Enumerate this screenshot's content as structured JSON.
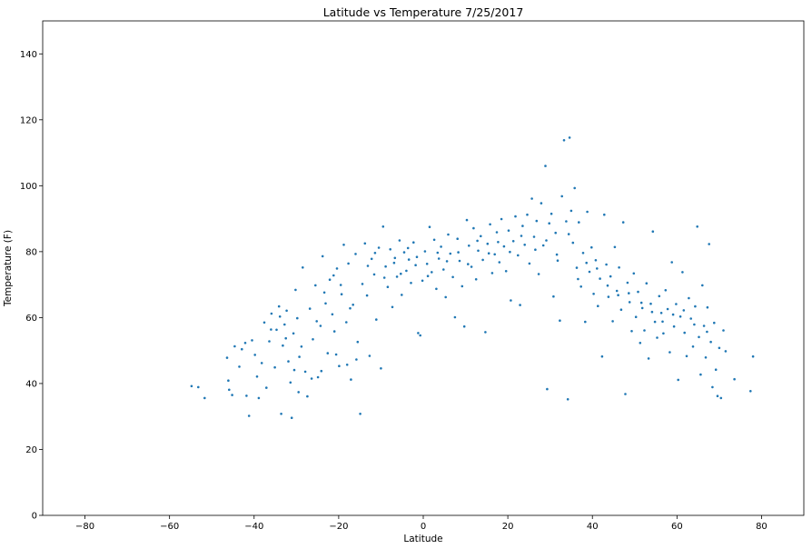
{
  "chart_data": {
    "type": "scatter",
    "title": "Latitude vs Temperature 7/25/2017",
    "xlabel": "Latitude",
    "ylabel": "Temperature (F)",
    "xlim": [
      -90,
      90
    ],
    "ylim": [
      0,
      150
    ],
    "x_ticks": [
      -80,
      -60,
      -40,
      -20,
      0,
      20,
      40,
      60,
      80
    ],
    "y_ticks": [
      0,
      20,
      40,
      60,
      80,
      100,
      120,
      140
    ],
    "grid": false,
    "point_color": "#1f77b4",
    "points": [
      [
        -54.8,
        39.2
      ],
      [
        -53.2,
        38.9
      ],
      [
        -51.7,
        35.6
      ],
      [
        -46.4,
        47.8
      ],
      [
        -46.1,
        40.9
      ],
      [
        -45.9,
        38.1
      ],
      [
        -45.2,
        36.5
      ],
      [
        -43.5,
        45.1
      ],
      [
        -42.9,
        50.4
      ],
      [
        -42.1,
        52.3
      ],
      [
        -41.8,
        36.3
      ],
      [
        -41.2,
        30.2
      ],
      [
        -40.5,
        53.1
      ],
      [
        -39.8,
        48.7
      ],
      [
        -38.9,
        35.6
      ],
      [
        -38.2,
        46.2
      ],
      [
        -37.6,
        58.5
      ],
      [
        -36.4,
        52.8
      ],
      [
        -35.9,
        61.2
      ],
      [
        -35.1,
        44.9
      ],
      [
        -34.7,
        56.3
      ],
      [
        -34.1,
        63.4
      ],
      [
        -33.6,
        30.8
      ],
      [
        -33.2,
        51.5
      ],
      [
        -32.8,
        57.9
      ],
      [
        -32.3,
        62.1
      ],
      [
        -31.9,
        46.7
      ],
      [
        -31.4,
        40.3
      ],
      [
        -31.1,
        29.6
      ],
      [
        -30.7,
        55.2
      ],
      [
        -30.2,
        68.4
      ],
      [
        -29.8,
        59.8
      ],
      [
        -29.3,
        48.1
      ],
      [
        -28.5,
        75.2
      ],
      [
        -27.9,
        43.6
      ],
      [
        -27.4,
        36.1
      ],
      [
        -26.8,
        62.7
      ],
      [
        -26.1,
        53.4
      ],
      [
        -25.5,
        69.8
      ],
      [
        -24.9,
        41.9
      ],
      [
        -24.3,
        57.5
      ],
      [
        -23.8,
        78.6
      ],
      [
        -23.1,
        64.3
      ],
      [
        -22.6,
        49.2
      ],
      [
        -22.1,
        71.5
      ],
      [
        -21.5,
        61.0
      ],
      [
        -21.0,
        55.8
      ],
      [
        -20.4,
        74.9
      ],
      [
        -19.9,
        45.3
      ],
      [
        -19.3,
        67.1
      ],
      [
        -18.8,
        82.1
      ],
      [
        -18.2,
        58.6
      ],
      [
        -17.7,
        76.4
      ],
      [
        -17.1,
        41.2
      ],
      [
        -16.6,
        63.9
      ],
      [
        -16.0,
        79.3
      ],
      [
        -15.5,
        52.6
      ],
      [
        -14.9,
        30.8
      ],
      [
        -14.4,
        70.2
      ],
      [
        -13.8,
        82.5
      ],
      [
        -13.3,
        66.7
      ],
      [
        -12.7,
        48.4
      ],
      [
        -12.2,
        77.8
      ],
      [
        -11.6,
        73.1
      ],
      [
        -11.1,
        59.4
      ],
      [
        -10.5,
        81.2
      ],
      [
        -10.0,
        44.6
      ],
      [
        -9.5,
        87.6
      ],
      [
        -8.9,
        75.5
      ],
      [
        -8.4,
        69.3
      ],
      [
        -7.8,
        80.7
      ],
      [
        -7.3,
        63.2
      ],
      [
        -6.7,
        78.1
      ],
      [
        -6.2,
        72.4
      ],
      [
        -5.6,
        83.4
      ],
      [
        -5.1,
        66.9
      ],
      [
        -4.5,
        79.8
      ],
      [
        -4.0,
        74.2
      ],
      [
        -3.4,
        77.6
      ],
      [
        -2.9,
        70.5
      ],
      [
        -2.3,
        82.8
      ],
      [
        -1.8,
        75.9
      ],
      [
        -1.2,
        55.3
      ],
      [
        -0.7,
        54.6
      ],
      [
        -0.2,
        71.2
      ],
      [
        0.4,
        80.1
      ],
      [
        0.9,
        76.3
      ],
      [
        1.5,
        87.5
      ],
      [
        2.0,
        73.8
      ],
      [
        2.6,
        83.6
      ],
      [
        3.1,
        68.7
      ],
      [
        3.7,
        77.9
      ],
      [
        4.2,
        81.5
      ],
      [
        4.8,
        74.6
      ],
      [
        5.3,
        66.2
      ],
      [
        5.9,
        85.2
      ],
      [
        6.4,
        79.4
      ],
      [
        7.0,
        72.3
      ],
      [
        7.5,
        60.1
      ],
      [
        8.1,
        83.9
      ],
      [
        8.6,
        77.2
      ],
      [
        9.2,
        69.5
      ],
      [
        9.7,
        57.3
      ],
      [
        10.3,
        89.6
      ],
      [
        10.8,
        81.8
      ],
      [
        11.4,
        75.4
      ],
      [
        11.9,
        87.1
      ],
      [
        12.5,
        71.6
      ],
      [
        13.0,
        80.3
      ],
      [
        13.6,
        84.7
      ],
      [
        14.1,
        77.5
      ],
      [
        14.7,
        55.6
      ],
      [
        15.2,
        82.4
      ],
      [
        15.8,
        88.3
      ],
      [
        16.3,
        73.5
      ],
      [
        16.9,
        79.2
      ],
      [
        17.4,
        85.9
      ],
      [
        18.0,
        76.8
      ],
      [
        18.5,
        89.9
      ],
      [
        19.1,
        81.6
      ],
      [
        19.6,
        74.1
      ],
      [
        20.2,
        86.4
      ],
      [
        20.7,
        65.2
      ],
      [
        21.3,
        83.2
      ],
      [
        21.8,
        90.7
      ],
      [
        22.4,
        78.9
      ],
      [
        22.9,
        63.8
      ],
      [
        23.5,
        87.8
      ],
      [
        24.0,
        82.1
      ],
      [
        24.6,
        91.2
      ],
      [
        25.1,
        76.4
      ],
      [
        25.7,
        96.1
      ],
      [
        26.2,
        84.5
      ],
      [
        26.8,
        89.3
      ],
      [
        27.3,
        73.2
      ],
      [
        27.9,
        94.7
      ],
      [
        28.4,
        81.9
      ],
      [
        28.9,
        106.0
      ],
      [
        29.3,
        38.3
      ],
      [
        29.8,
        88.6
      ],
      [
        30.3,
        91.5
      ],
      [
        30.8,
        66.4
      ],
      [
        31.3,
        85.7
      ],
      [
        31.8,
        77.3
      ],
      [
        32.3,
        59.1
      ],
      [
        32.8,
        96.8
      ],
      [
        33.3,
        113.8
      ],
      [
        33.8,
        89.2
      ],
      [
        34.2,
        35.2
      ],
      [
        34.6,
        114.6
      ],
      [
        35.0,
        92.4
      ],
      [
        35.4,
        82.7
      ],
      [
        35.8,
        99.3
      ],
      [
        36.3,
        75.1
      ],
      [
        36.8,
        88.9
      ],
      [
        37.3,
        69.4
      ],
      [
        37.8,
        79.6
      ],
      [
        38.3,
        58.7
      ],
      [
        38.8,
        92.1
      ],
      [
        39.3,
        73.9
      ],
      [
        39.8,
        81.3
      ],
      [
        40.3,
        67.2
      ],
      [
        40.8,
        77.4
      ],
      [
        41.3,
        63.5
      ],
      [
        41.8,
        71.8
      ],
      [
        42.3,
        48.2
      ],
      [
        42.8,
        91.2
      ],
      [
        43.3,
        76.1
      ],
      [
        43.8,
        66.3
      ],
      [
        44.3,
        72.5
      ],
      [
        44.8,
        58.9
      ],
      [
        45.3,
        81.4
      ],
      [
        45.8,
        68.1
      ],
      [
        46.3,
        75.2
      ],
      [
        46.8,
        62.4
      ],
      [
        47.3,
        88.9
      ],
      [
        47.8,
        36.8
      ],
      [
        48.3,
        70.6
      ],
      [
        48.8,
        64.7
      ],
      [
        49.3,
        55.9
      ],
      [
        49.8,
        73.4
      ],
      [
        50.3,
        60.2
      ],
      [
        50.8,
        67.8
      ],
      [
        51.3,
        52.3
      ],
      [
        51.8,
        62.9
      ],
      [
        52.3,
        56.1
      ],
      [
        52.8,
        70.4
      ],
      [
        53.3,
        47.6
      ],
      [
        53.8,
        64.2
      ],
      [
        54.3,
        86.1
      ],
      [
        54.8,
        58.7
      ],
      [
        55.3,
        53.9
      ],
      [
        55.8,
        66.5
      ],
      [
        56.3,
        61.4
      ],
      [
        56.8,
        55.2
      ],
      [
        57.3,
        68.3
      ],
      [
        57.8,
        62.6
      ],
      [
        58.3,
        49.5
      ],
      [
        58.8,
        76.8
      ],
      [
        59.3,
        57.3
      ],
      [
        59.8,
        64.1
      ],
      [
        60.3,
        41.1
      ],
      [
        60.8,
        60.3
      ],
      [
        61.3,
        73.8
      ],
      [
        61.8,
        55.4
      ],
      [
        62.3,
        48.3
      ],
      [
        62.8,
        65.9
      ],
      [
        63.3,
        59.7
      ],
      [
        63.8,
        51.2
      ],
      [
        64.3,
        63.4
      ],
      [
        64.8,
        87.6
      ],
      [
        65.2,
        54.1
      ],
      [
        65.6,
        42.7
      ],
      [
        66.0,
        69.8
      ],
      [
        66.4,
        57.5
      ],
      [
        66.8,
        47.9
      ],
      [
        67.2,
        63.1
      ],
      [
        67.6,
        82.3
      ],
      [
        68.0,
        52.6
      ],
      [
        68.4,
        38.9
      ],
      [
        68.8,
        58.4
      ],
      [
        69.2,
        44.2
      ],
      [
        69.6,
        36.2
      ],
      [
        70.0,
        50.8
      ],
      [
        70.4,
        35.6
      ],
      [
        71.0,
        56.1
      ],
      [
        71.5,
        49.8
      ],
      [
        73.6,
        41.3
      ],
      [
        77.4,
        37.7
      ],
      [
        78.0,
        48.2
      ],
      [
        -36.0,
        56.4
      ],
      [
        -33.9,
        60.3
      ],
      [
        -32.5,
        53.7
      ],
      [
        -28.8,
        51.2
      ],
      [
        -25.2,
        58.9
      ],
      [
        -23.4,
        67.6
      ],
      [
        -21.2,
        72.8
      ],
      [
        -19.5,
        69.9
      ],
      [
        -17.3,
        62.8
      ],
      [
        -13.1,
        75.7
      ],
      [
        -11.4,
        79.6
      ],
      [
        -9.2,
        72.1
      ],
      [
        -6.9,
        76.6
      ],
      [
        -5.3,
        73.3
      ],
      [
        -3.6,
        81.1
      ],
      [
        -1.5,
        78.4
      ],
      [
        1.1,
        72.6
      ],
      [
        3.4,
        79.7
      ],
      [
        5.6,
        77.1
      ],
      [
        8.3,
        79.8
      ],
      [
        10.6,
        76.2
      ],
      [
        12.8,
        83.3
      ],
      [
        15.5,
        79.5
      ],
      [
        17.7,
        82.9
      ],
      [
        20.5,
        79.9
      ],
      [
        23.2,
        84.8
      ],
      [
        26.5,
        80.6
      ],
      [
        29.1,
        83.4
      ],
      [
        31.6,
        79.1
      ],
      [
        34.4,
        85.3
      ],
      [
        36.6,
        71.7
      ],
      [
        38.6,
        76.6
      ],
      [
        41.1,
        74.9
      ],
      [
        43.6,
        69.7
      ],
      [
        46.1,
        66.8
      ],
      [
        48.6,
        67.4
      ],
      [
        51.6,
        64.5
      ],
      [
        54.1,
        61.7
      ],
      [
        56.6,
        58.8
      ],
      [
        59.1,
        60.9
      ],
      [
        61.6,
        62.2
      ],
      [
        64.1,
        57.9
      ],
      [
        67.1,
        55.7
      ],
      [
        -39.3,
        42.1
      ],
      [
        -37.1,
        38.7
      ],
      [
        -29.5,
        37.4
      ],
      [
        -26.4,
        41.5
      ],
      [
        -24.1,
        43.8
      ],
      [
        -20.6,
        48.8
      ],
      [
        -18.0,
        45.7
      ],
      [
        -15.8,
        47.3
      ],
      [
        -44.6,
        51.3
      ],
      [
        -30.5,
        44.1
      ]
    ]
  }
}
